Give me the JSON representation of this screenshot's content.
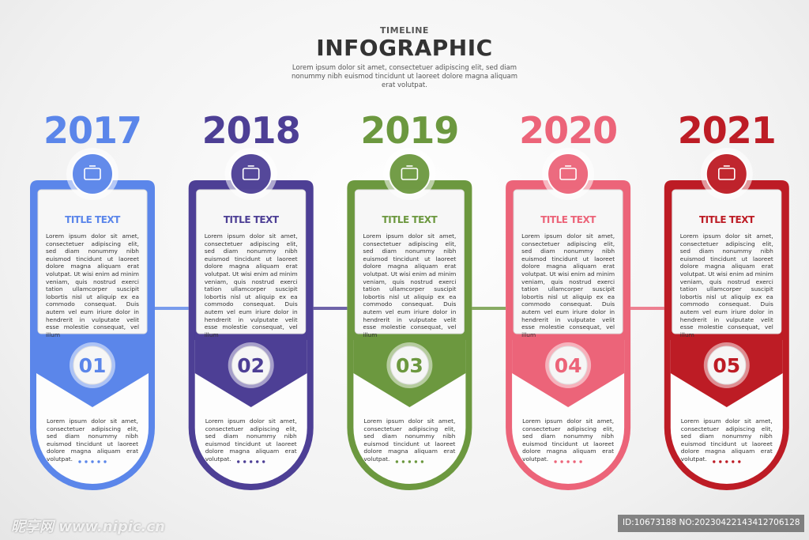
{
  "header": {
    "kicker": "TIMELINE",
    "title": "INFOGRAPHIC",
    "subtitle": "Lorem ipsum dolor sit amet, consectetuer adipiscing elit, sed diam nonummy nibh euismod tincidunt ut laoreet dolore magna aliquam erat volutpat."
  },
  "steps": [
    {
      "year": "2017",
      "title": "TITLE TEXT",
      "number": "01",
      "color": "#5b86ea",
      "body": "Lorem ipsum dolor sit amet, consectetuer adipiscing elit, sed diam nonummy nibh euismod tincidunt ut laoreet dolore magna aliquam erat volutpat. Ut wisi enim ad minim veniam, quis nostrud exerci tation ullamcorper suscipit lobortis nisl ut aliquip ex ea commodo consequat. Duis autem vel eum iriure dolor in hendrerit in vulputate velit esse molestie consequat, vel illum",
      "footer": "Lorem ipsum dolor sit amet, consectetuer adipiscing elit, sed diam nonummy nibh euismod tincidunt ut laoreet dolore magna aliquam erat volutpat."
    },
    {
      "year": "2018",
      "title": "TITLE TEXT",
      "number": "02",
      "color": "#4d3f95",
      "body": "Lorem ipsum dolor sit amet, consectetuer adipiscing elit, sed diam nonummy nibh euismod tincidunt ut laoreet dolore magna aliquam erat volutpat. Ut wisi enim ad minim veniam, quis nostrud exerci tation ullamcorper suscipit lobortis nisl ut aliquip ex ea commodo consequat. Duis autem vel eum iriure dolor in hendrerit in vulputate velit esse molestie consequat, vel illum",
      "footer": "Lorem ipsum dolor sit amet, consectetuer adipiscing elit, sed diam nonummy nibh euismod tincidunt ut laoreet dolore magna aliquam erat volutpat."
    },
    {
      "year": "2019",
      "title": "TITLE TEXT",
      "number": "03",
      "color": "#6c983f",
      "body": "Lorem ipsum dolor sit amet, consectetuer adipiscing elit, sed diam nonummy nibh euismod tincidunt ut laoreet dolore magna aliquam erat volutpat. Ut wisi enim ad minim veniam, quis nostrud exerci tation ullamcorper suscipit lobortis nisl ut aliquip ex ea commodo consequat. Duis autem vel eum iriure dolor in hendrerit in vulputate velit esse molestie consequat, vel illum",
      "footer": "Lorem ipsum dolor sit amet, consectetuer adipiscing elit, sed diam nonummy nibh euismod tincidunt ut laoreet dolore magna aliquam erat volutpat."
    },
    {
      "year": "2020",
      "title": "TITLE TEXT",
      "number": "04",
      "color": "#ec6479",
      "body": "Lorem ipsum dolor sit amet, consectetuer adipiscing elit, sed diam nonummy nibh euismod tincidunt ut laoreet dolore magna aliquam erat volutpat. Ut wisi enim ad minim veniam, quis nostrud exerci tation ullamcorper suscipit lobortis nisl ut aliquip ex ea commodo consequat. Duis autem vel eum iriure dolor in hendrerit in vulputate velit esse molestie consequat, vel illum",
      "footer": "Lorem ipsum dolor sit amet, consectetuer adipiscing elit, sed diam nonummy nibh euismod tincidunt ut laoreet dolore magna aliquam erat volutpat."
    },
    {
      "year": "2021",
      "title": "TITLE TEXT",
      "number": "05",
      "color": "#bd1c25",
      "body": "Lorem ipsum dolor sit amet, consectetuer adipiscing elit, sed diam nonummy nibh euismod tincidunt ut laoreet dolore magna aliquam erat volutpat. Ut wisi enim ad minim veniam, quis nostrud exerci tation ullamcorper suscipit lobortis nisl ut aliquip ex ea commodo consequat. Duis autem vel eum iriure dolor in hendrerit in vulputate velit esse molestie consequat, vel illum",
      "footer": "Lorem ipsum dolor sit amet, consectetuer adipiscing elit, sed diam nonummy nibh euismod tincidunt ut laoreet dolore magna aliquam erat volutpat."
    }
  ],
  "watermark": {
    "site": "昵享网 www.nipic.cn",
    "id": "ID:10673188 NO:20230422143412706128"
  }
}
